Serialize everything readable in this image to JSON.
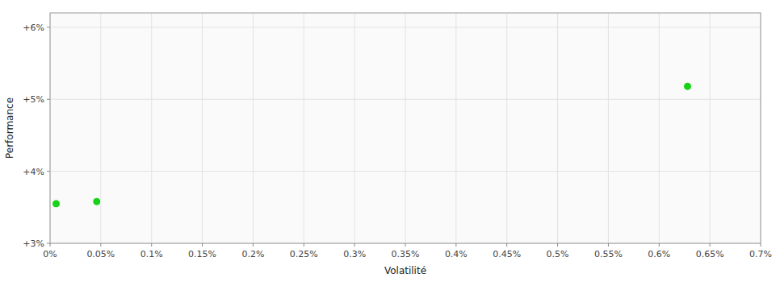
{
  "chart_data": {
    "type": "scatter",
    "xlabel": "Volatilité",
    "ylabel": "Performance",
    "x": [
      6e-05,
      0.00046,
      0.00628
    ],
    "values": [
      0.0355,
      0.0358,
      0.0518
    ],
    "color": "#00cc00",
    "xlim": [
      0.0,
      0.007
    ],
    "ylim": [
      0.03,
      0.062
    ],
    "xticks": [
      {
        "value": 0.0,
        "label": "0%"
      },
      {
        "value": 0.0005,
        "label": "0.05%"
      },
      {
        "value": 0.001,
        "label": "0.1%"
      },
      {
        "value": 0.0015,
        "label": "0.15%"
      },
      {
        "value": 0.002,
        "label": "0.2%"
      },
      {
        "value": 0.0025,
        "label": "0.25%"
      },
      {
        "value": 0.003,
        "label": "0.3%"
      },
      {
        "value": 0.0035,
        "label": "0.35%"
      },
      {
        "value": 0.004,
        "label": "0.4%"
      },
      {
        "value": 0.0045,
        "label": "0.45%"
      },
      {
        "value": 0.005,
        "label": "0.5%"
      },
      {
        "value": 0.0055,
        "label": "0.55%"
      },
      {
        "value": 0.006,
        "label": "0.6%"
      },
      {
        "value": 0.0065,
        "label": "0.65%"
      },
      {
        "value": 0.007,
        "label": "0.7%"
      }
    ],
    "yticks": [
      {
        "value": 0.03,
        "label": "+3%"
      },
      {
        "value": 0.04,
        "label": "+4%"
      },
      {
        "value": 0.05,
        "label": "+5%"
      },
      {
        "value": 0.06,
        "label": "+6%"
      }
    ],
    "grid": true
  }
}
